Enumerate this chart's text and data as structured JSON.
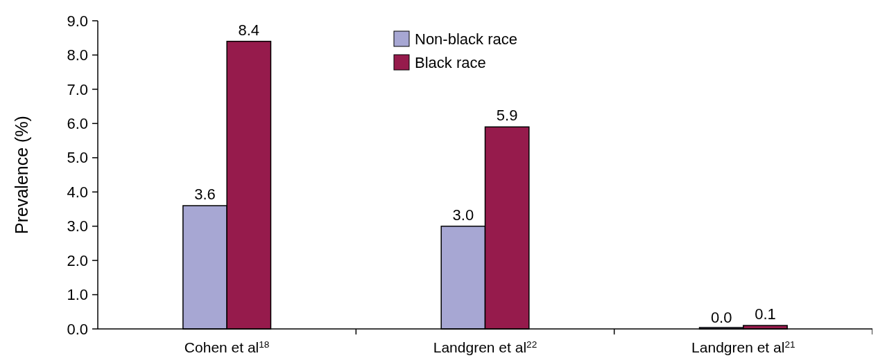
{
  "chart_data": {
    "type": "bar",
    "ylabel": "Prevalence (%)",
    "categories": [
      "Cohen et al$^{18}$",
      "Landgren et al$^{22}$",
      "Landgren et al$^{21}$"
    ],
    "series": [
      {
        "name": "Non-black race",
        "color": "#a7a7d3",
        "values": [
          3.6,
          3.0,
          0.0
        ],
        "value_labels": [
          "3.6",
          "3.0",
          "0.0"
        ]
      },
      {
        "name": "Black race",
        "color": "#961b4c",
        "values": [
          8.4,
          5.9,
          0.1
        ],
        "value_labels": [
          "8.4",
          "5.9",
          "0.1"
        ]
      }
    ],
    "ylim": [
      0,
      9
    ],
    "yticks": [
      {
        "value": 0,
        "label": "0.0"
      },
      {
        "value": 1,
        "label": "1.0"
      },
      {
        "value": 2,
        "label": "2.0"
      },
      {
        "value": 3,
        "label": "3.0"
      },
      {
        "value": 4,
        "label": "4.0"
      },
      {
        "value": 5,
        "label": "5.0"
      },
      {
        "value": 6,
        "label": "6.0"
      },
      {
        "value": 7,
        "label": "7.0"
      },
      {
        "value": 8,
        "label": "8.0"
      },
      {
        "value": 9,
        "label": "9.0"
      }
    ],
    "legend": "top"
  }
}
